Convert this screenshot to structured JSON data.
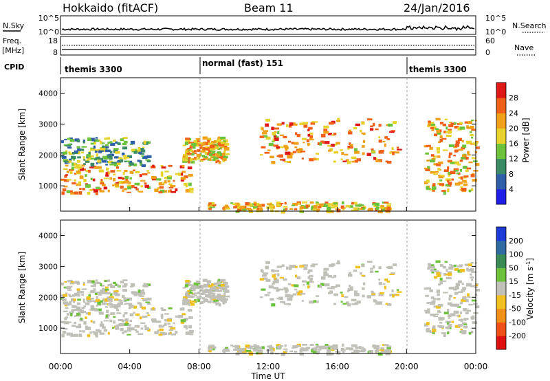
{
  "header": {
    "station": "Hokkaido (fitACF)",
    "beam": "Beam 11",
    "date": "24/Jan/2016"
  },
  "nsky": {
    "label": "N.Sky",
    "ticks_left": [
      "10^5",
      "10^0"
    ],
    "ticks_right": [
      "10^5",
      "10^0"
    ],
    "right_label": "N.Search"
  },
  "freq": {
    "label_line1": "Freq.",
    "label_line2": "[MHz]",
    "ticks_left": [
      "18",
      "8"
    ],
    "ticks_right": [
      "60",
      "0"
    ],
    "right_label": "Nave"
  },
  "cpid": {
    "label": "CPID",
    "segments": [
      {
        "name": "themis 3300",
        "start": 0,
        "end": 8
      },
      {
        "name": "normal (fast) 151",
        "start": 8,
        "end": 20
      },
      {
        "name": "themis 3300",
        "start": 20,
        "end": 24
      }
    ]
  },
  "power_panel": {
    "ylabel": "Slant Range [km]",
    "yticks": [
      "1000",
      "2000",
      "3000",
      "4000"
    ],
    "colorbar_label": "Power [dB]",
    "colorbar_ticks": [
      "4",
      "8",
      "12",
      "16",
      "20",
      "24",
      "28"
    ],
    "colors": [
      "#1e1ee8",
      "#2f5fa8",
      "#3a8a66",
      "#6cc23a",
      "#e6d22a",
      "#f0a018",
      "#f06018",
      "#e01818"
    ]
  },
  "velocity_panel": {
    "ylabel": "Slant Range [km]",
    "yticks": [
      "1000",
      "2000",
      "3000",
      "4000"
    ],
    "colorbar_label": "Velocity [m s",
    "colorbar_sup": "-1",
    "colorbar_ticks": [
      "200",
      "100",
      "50",
      "15",
      "-15",
      "-50",
      "-100",
      "-200"
    ],
    "colors": [
      "#1e3ad8",
      "#2f6aa0",
      "#3a8a56",
      "#6cc23a",
      "#c0c0b8",
      "#f0c020",
      "#f09018",
      "#f05018",
      "#e01010"
    ]
  },
  "xaxis": {
    "ticks": [
      "00:00",
      "04:00",
      "08:00",
      "12:00",
      "16:00",
      "20:00",
      "00:00"
    ],
    "label": "Time UT"
  },
  "chart_data": {
    "type": "heatmap",
    "title": "Hokkaido (fitACF) Beam 11 24/Jan/2016",
    "x_range_hours": [
      0,
      24
    ],
    "y_range_km": [
      180,
      4500
    ],
    "xlabel": "Time UT",
    "ylabel": "Slant Range [km]",
    "power_scale_db": [
      0,
      30
    ],
    "velocity_scale_ms": [
      -200,
      200
    ],
    "echo_regions": [
      {
        "t_start": 0.0,
        "t_end": 7.5,
        "range_km": [
          800,
          1700
        ],
        "power_db": 28
      },
      {
        "t_start": 0.0,
        "t_end": 5.0,
        "range_km": [
          1700,
          2600
        ],
        "power_db": 18
      },
      {
        "t_start": 7.0,
        "t_end": 9.5,
        "range_km": [
          1800,
          2600
        ],
        "power_db": 26
      },
      {
        "t_start": 11.5,
        "t_end": 19.5,
        "range_km": [
          1800,
          3200
        ],
        "power_db": 28
      },
      {
        "t_start": 21.0,
        "t_end": 24.0,
        "range_km": [
          800,
          3200
        ],
        "power_db": 26
      },
      {
        "t_start": 8.5,
        "t_end": 19.0,
        "range_km": [
          200,
          500
        ],
        "power_db": 26
      }
    ]
  }
}
